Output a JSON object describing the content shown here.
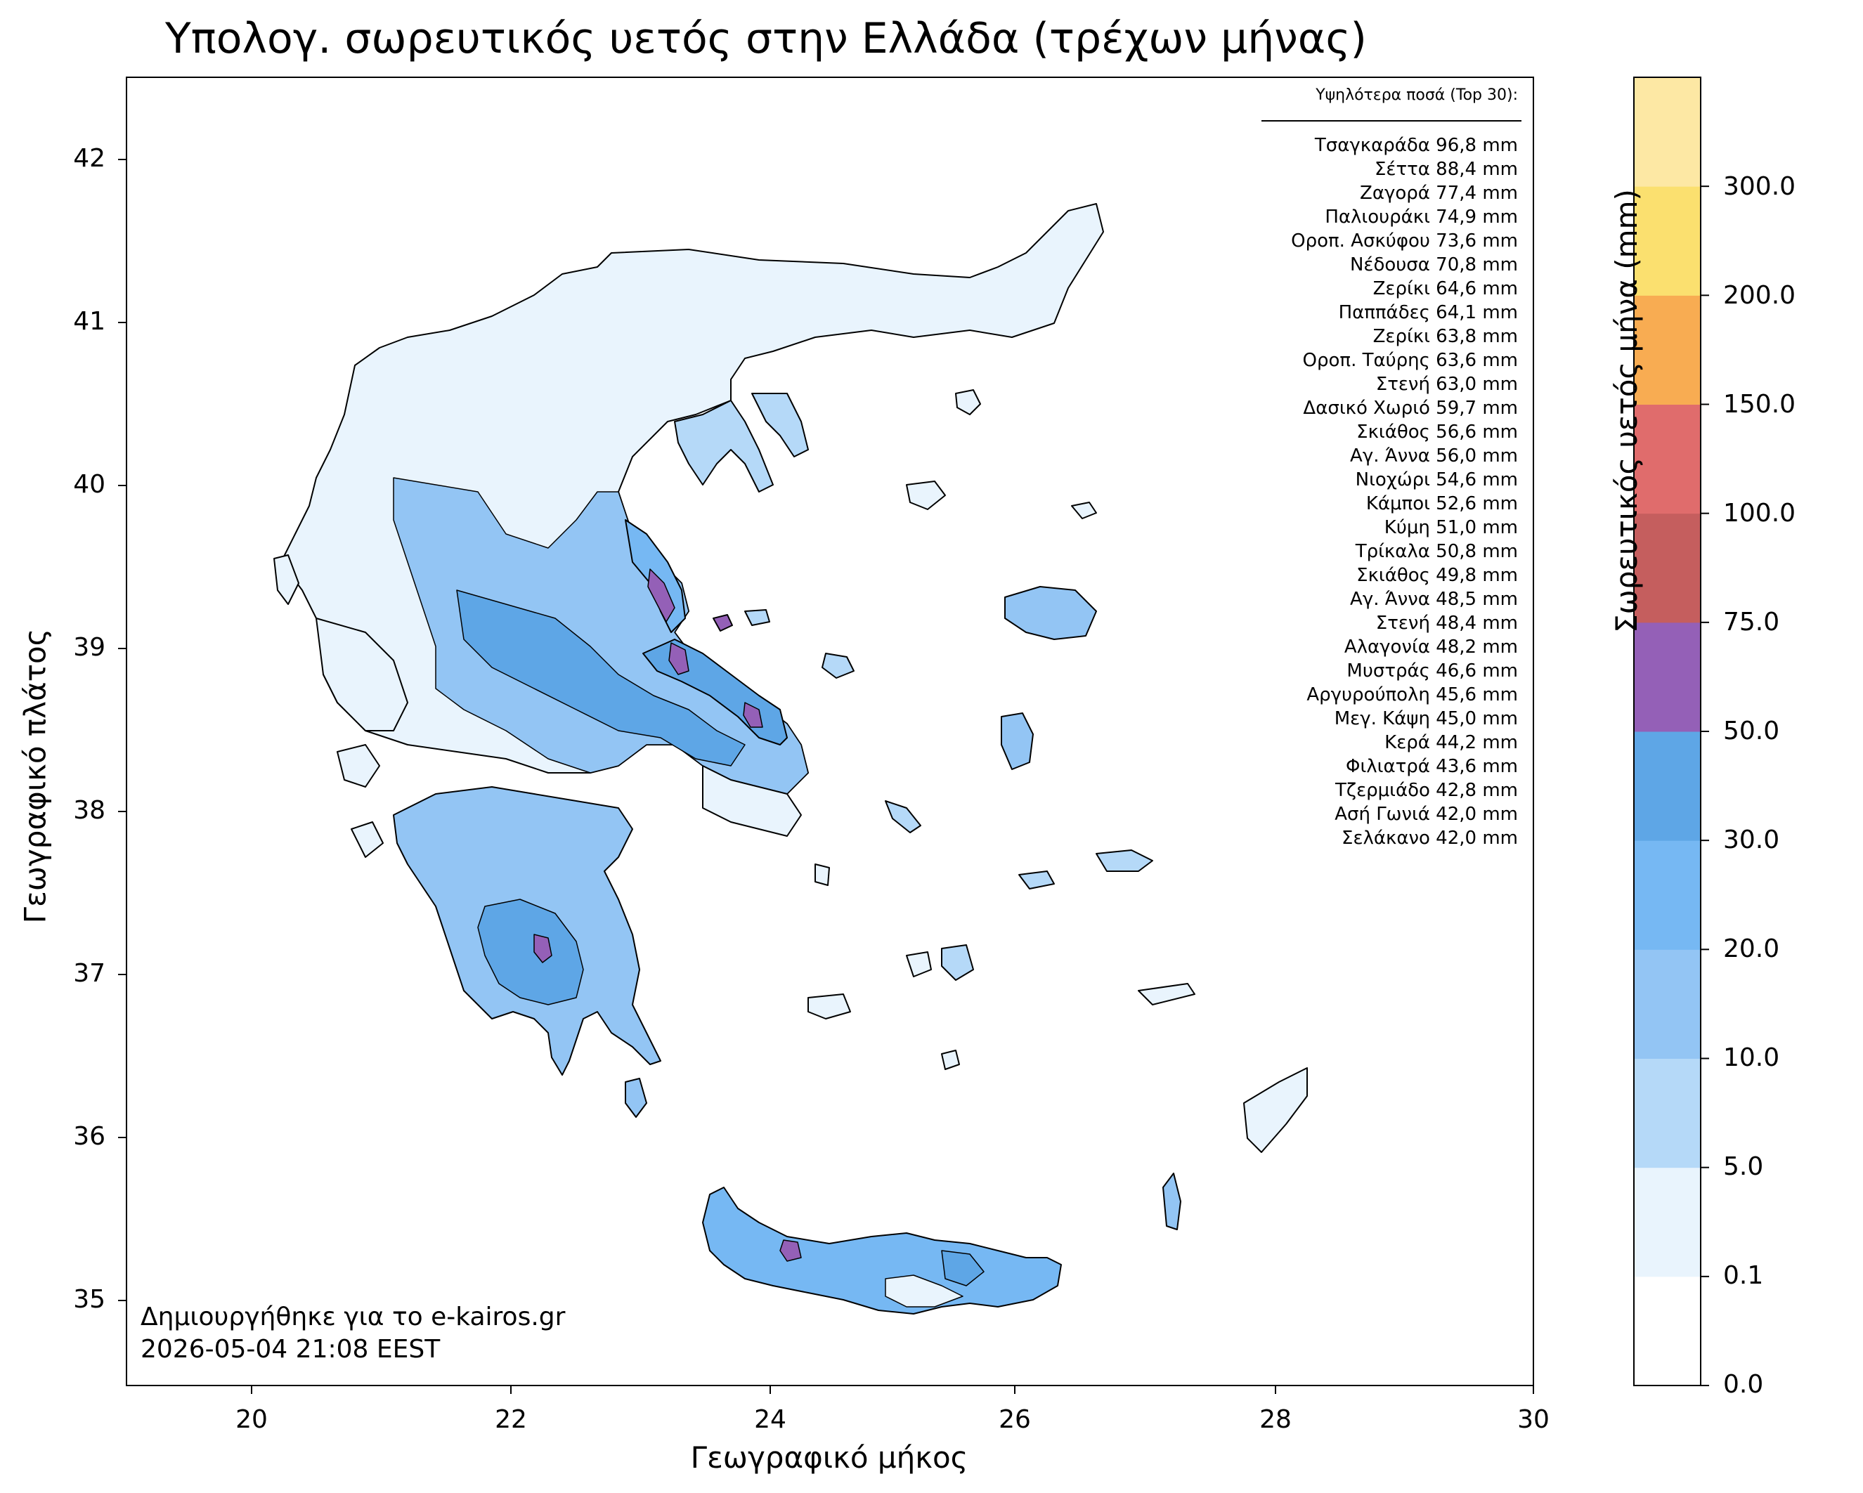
{
  "title": "Υπολογ. σωρευτικός υετός στην Ελλάδα (τρέχων μήνας)",
  "xlabel": "Γεωγραφικό μήκος",
  "ylabel": "Γεωγραφικό πλάτος",
  "x_ticks": [
    "20",
    "22",
    "24",
    "26",
    "28",
    "30"
  ],
  "y_ticks": [
    "42",
    "41",
    "40",
    "39",
    "38",
    "37",
    "36",
    "35"
  ],
  "extent": {
    "lon": [
      19.0,
      30.0
    ],
    "lat": [
      34.5,
      42.5
    ]
  },
  "colorbar": {
    "label": "Σωρευτικός υετός μήνα (mm)",
    "levels": [
      "0.0",
      "0.1",
      "5.0",
      "10.0",
      "20.0",
      "30.0",
      "50.0",
      "75.0",
      "100.0",
      "150.0",
      "200.0",
      "300.0"
    ],
    "colors": [
      "#ffffff",
      "#e9f4fd",
      "#b5d9f8",
      "#93c5f4",
      "#76b8f3",
      "#5ea6e6",
      "#9460b7",
      "#c55e5e",
      "#e06c6c",
      "#f8ac52",
      "#fbe06f",
      "#fde8a4"
    ]
  },
  "top_list": {
    "header": "Υψηλότερα ποσά (Top 30):",
    "items": [
      "Τσαγκαράδα 96,8 mm",
      "Σέττα 88,4 mm",
      "Ζαγορά 77,4 mm",
      "Παλιουράκι 74,9 mm",
      "Οροπ. Ασκύφου 73,6 mm",
      "Νέδουσα 70,8 mm",
      "Ζερίκι 64,6 mm",
      "Παππάδες 64,1 mm",
      "Ζερίκι 63,8 mm",
      "Οροπ. Ταύρης 63,6 mm",
      "Στενή 63,0 mm",
      "Δασικό Χωριό 59,7 mm",
      "Σκιάθος 56,6 mm",
      "Αγ. Άννα 56,0 mm",
      "Νιοχώρι 54,6 mm",
      "Κάμποι 52,6 mm",
      "Κύμη 51,0 mm",
      "Τρίκαλα 50,8 mm",
      "Σκιάθος 49,8 mm",
      "Αγ. Άννα 48,5 mm",
      "Στενή 48,4 mm",
      "Αλαγονία 48,2 mm",
      "Μυστράς 46,6 mm",
      "Αργυρούπολη 45,6 mm",
      "Μεγ. Κάψη 45,0 mm",
      "Κερά 44,2 mm",
      "Φιλιατρά 43,6 mm",
      "Τζερμιάδο 42,8 mm",
      "Ασή Γωνιά 42,0 mm",
      "Σελάκανο 42,0 mm"
    ]
  },
  "credit": {
    "line1": "Δημιουργήθηκε για το e-kairos.gr",
    "line2": "2026-05-04 21:08 EEST"
  }
}
